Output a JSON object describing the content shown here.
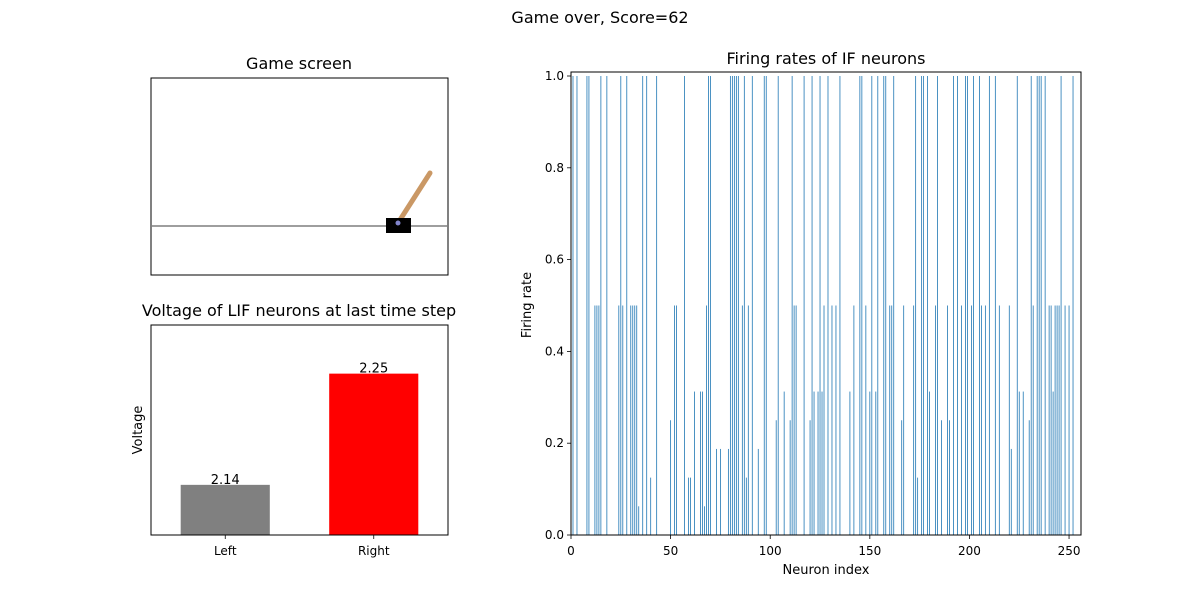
{
  "figure": {
    "suptitle": "Game over, Score=62"
  },
  "game_screen": {
    "title": "Game screen",
    "colors": {
      "track": "#7f7f7f",
      "cart": "#000000",
      "pole": "#ca9865",
      "axle": "#8184cb"
    }
  },
  "chart_data": [
    {
      "type": "bar",
      "title": "Voltage of LIF neurons at last time step",
      "xlabel": "",
      "ylabel": "Voltage",
      "categories": [
        "Left",
        "Right"
      ],
      "values": [
        2.14,
        2.25
      ],
      "value_labels": [
        "2.14",
        "2.25"
      ],
      "colors": [
        "#808080",
        "#ff0000"
      ],
      "ylim": [
        2.0904,
        2.2981
      ],
      "yticks_shown": false,
      "grid": false
    },
    {
      "type": "bar",
      "title": "Firing rates of IF neurons",
      "xlabel": "Neuron index",
      "ylabel": "Firing rate",
      "xlim": [
        0,
        256
      ],
      "ylim": [
        0,
        1.0
      ],
      "xticks": [
        "0",
        "50",
        "100",
        "150",
        "200",
        "250"
      ],
      "yticks": [
        "0.0",
        "0.2",
        "0.4",
        "0.6",
        "0.8",
        "1.0"
      ],
      "color": "#1f77b4",
      "grid": false,
      "x": [
        1,
        3,
        8,
        9,
        12,
        13,
        14,
        15,
        18,
        24,
        25,
        26,
        28,
        30,
        31,
        32,
        33,
        34,
        36,
        38,
        40,
        43,
        50,
        52,
        53,
        57,
        59,
        60,
        62,
        65,
        66,
        67,
        68,
        69,
        70,
        73,
        75,
        79,
        80,
        81,
        82,
        83,
        84,
        86,
        87,
        88,
        89,
        91,
        94,
        97,
        98,
        103,
        104,
        107,
        110,
        111,
        112,
        113,
        117,
        120,
        121,
        122,
        124,
        125,
        126,
        127,
        129,
        131,
        133,
        135,
        140,
        142,
        145,
        146,
        148,
        150,
        151,
        153,
        154,
        157,
        158,
        160,
        161,
        162,
        166,
        167,
        172,
        173,
        174,
        176,
        177,
        179,
        180,
        183,
        184,
        186,
        189,
        190,
        192,
        194,
        196,
        198,
        199,
        201,
        202,
        205,
        206,
        208,
        210,
        213,
        215,
        220,
        221,
        224,
        225,
        227,
        230,
        231,
        232,
        234,
        235,
        236,
        238,
        240,
        241,
        242,
        243,
        244,
        245,
        246,
        248,
        250,
        252
      ],
      "values": [
        1,
        1,
        1,
        1,
        0.5,
        0.5,
        0.5,
        1,
        1,
        0.5,
        1,
        0.5,
        1,
        0.5,
        0.5,
        0.5,
        0.5,
        0.0625,
        1,
        1,
        0.125,
        1,
        0.25,
        0.5,
        0.5,
        1,
        0.125,
        0.125,
        0.3125,
        0.3125,
        0.3125,
        0.0625,
        0.5,
        1,
        1,
        0.1875,
        0.1875,
        0.1875,
        1,
        1,
        1,
        1,
        1,
        0.5,
        1,
        0.125,
        0.5,
        1,
        0.1875,
        1,
        1,
        0.25,
        1,
        0.3125,
        0.25,
        1,
        0.5,
        0.5,
        1,
        0.25,
        1,
        0.3125,
        0.3125,
        1,
        0.3125,
        0.5,
        1,
        0.5,
        0.5,
        1,
        0.3125,
        0.5,
        1,
        1,
        0.5,
        0.3125,
        1,
        0.3125,
        1,
        1,
        1,
        0.5,
        0.5,
        1,
        0.25,
        0.5,
        0.5,
        1,
        0.125,
        1,
        1,
        1,
        0.3125,
        0.5,
        1,
        0.25,
        0.5,
        0.25,
        1,
        1,
        0.5,
        1,
        1,
        0.5,
        1,
        1,
        0.5,
        0.5,
        1,
        1,
        0.5,
        0.5,
        0.1875,
        1,
        0.3125,
        0.3125,
        0.25,
        1,
        0.5,
        1,
        1,
        1,
        1,
        0.5,
        0.5,
        0.3125,
        0.5,
        0.5,
        0.5,
        1,
        0.5,
        0.5,
        1
      ]
    }
  ]
}
